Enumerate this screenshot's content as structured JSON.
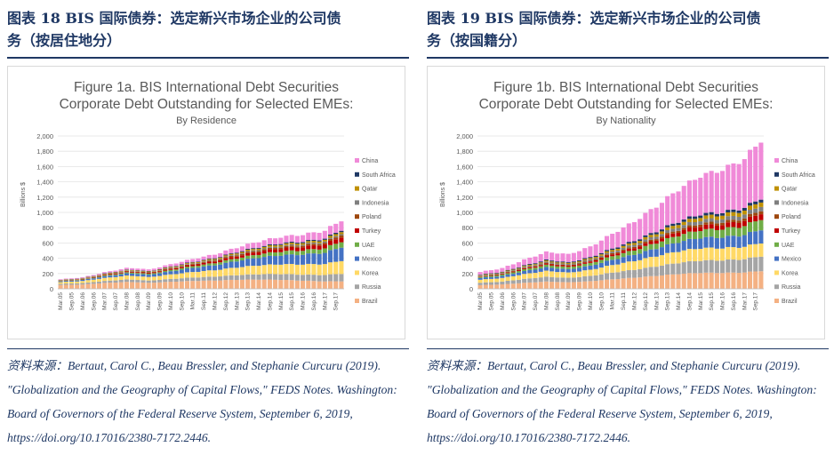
{
  "panels": [
    {
      "heading_line1": "图表 18   BIS 国际债券：选定新兴市场企业的公司债",
      "heading_line2": "务（按居住地分）",
      "source_note": "资料来源：Bertaut, Carol C., Beau Bressler, and Stephanie Curcuru (2019). \"Globalization and the Geography of Capital Flows,\" FEDS Notes. Washington: Board of Governors of the Federal Reserve System, September 6, 2019, https://doi.org/10.17016/2380-7172.2446."
    },
    {
      "heading_line1": "图表 19   BIS 国际债券：选定新兴市场企业的公司债",
      "heading_line2": "务（按国籍分）",
      "source_note": "资料来源：Bertaut, Carol C., Beau Bressler, and Stephanie Curcuru (2019). \"Globalization and the Geography of Capital Flows,\" FEDS Notes. Washington: Board of Governors of the Federal Reserve System, September 6, 2019, https://doi.org/10.17016/2380-7172.2446."
    }
  ],
  "series_colors": {
    "Brazil": "#f4b183",
    "Russia": "#a5a5a5",
    "Korea": "#ffd966",
    "Mexico": "#4472c4",
    "UAE": "#70ad47",
    "Turkey": "#c00000",
    "Poland": "#9e480e",
    "Indonesia": "#7f7f7f",
    "Qatar": "#bf9000",
    "South Africa": "#1f3864",
    "China": "#f08ad8"
  },
  "chart_data": [
    {
      "type": "bar",
      "stacked": true,
      "title": "Figure 1a.  BIS International Debt Securities",
      "title2": "Corporate Debt Outstanding for Selected EMEs:",
      "subtitle": "By Residence",
      "ylabel": "Billions $",
      "ylim": [
        0,
        2000
      ],
      "yticks": [
        "2,000",
        "1,800",
        "1,600",
        "1,400",
        "1,200",
        "1,000",
        "800",
        "600",
        "400",
        "200",
        "0"
      ],
      "ytick_values": [
        2000,
        1800,
        1600,
        1400,
        1200,
        1000,
        800,
        600,
        400,
        200,
        0
      ],
      "xtick_labels": [
        "Mar.05",
        "Sep.05",
        "Mar.06",
        "Sep.06",
        "Mar.07",
        "Sep.07",
        "Mar.08",
        "Sep.08",
        "Mar.09",
        "Sep.09",
        "Mar.10",
        "Sep.10",
        "Mar.11",
        "Sep.11",
        "Mar.12",
        "Sep.12",
        "Mar.13",
        "Sep.13",
        "Mar.14",
        "Sep.14",
        "Mar.15",
        "Sep.15",
        "Mar.16",
        "Sep.16",
        "Mar.17",
        "Sep.17"
      ],
      "legend": [
        "China",
        "South Africa",
        "Qatar",
        "Indonesia",
        "Poland",
        "Turkey",
        "UAE",
        "Mexico",
        "Korea",
        "Russia",
        "Brazil"
      ],
      "series_order": [
        "Brazil",
        "Russia",
        "Korea",
        "Mexico",
        "UAE",
        "Turkey",
        "Poland",
        "Indonesia",
        "Qatar",
        "South Africa",
        "China"
      ],
      "totals_anchor": [
        [
          0,
          125
        ],
        [
          4,
          150
        ],
        [
          8,
          215
        ],
        [
          12,
          270
        ],
        [
          14,
          270
        ],
        [
          16,
          250
        ],
        [
          20,
          320
        ],
        [
          24,
          390
        ],
        [
          28,
          450
        ],
        [
          32,
          540
        ],
        [
          36,
          620
        ],
        [
          40,
          680
        ],
        [
          44,
          710
        ],
        [
          48,
          760
        ],
        [
          51,
          900
        ]
      ],
      "share_start": {
        "Brazil": 0.4,
        "Russia": 0.12,
        "Korea": 0.18,
        "Mexico": 0.08,
        "UAE": 0.04,
        "Turkey": 0.03,
        "Poland": 0.02,
        "Indonesia": 0.02,
        "Qatar": 0.03,
        "South Africa": 0.02,
        "China": 0.06
      },
      "share_end": {
        "Brazil": 0.11,
        "Russia": 0.11,
        "Korea": 0.19,
        "Mexico": 0.2,
        "UAE": 0.08,
        "Turkey": 0.07,
        "Poland": 0.03,
        "Indonesia": 0.02,
        "Qatar": 0.03,
        "South Africa": 0.02,
        "China": 0.14
      }
    },
    {
      "type": "bar",
      "stacked": true,
      "title": "Figure 1b.  BIS International Debt Securities",
      "title2": "Corporate Debt Outstanding for Selected EMEs:",
      "subtitle": "By Nationality",
      "ylabel": "Billions $",
      "ylim": [
        0,
        2000
      ],
      "yticks": [
        "2,000",
        "1,800",
        "1,600",
        "1,400",
        "1,200",
        "1,000",
        "800",
        "600",
        "400",
        "200",
        "0"
      ],
      "ytick_values": [
        2000,
        1800,
        1600,
        1400,
        1200,
        1000,
        800,
        600,
        400,
        200,
        0
      ],
      "xtick_labels": [
        "Mar.05",
        "Sep.05",
        "Mar.06",
        "Sep.06",
        "Mar.07",
        "Sep.07",
        "Mar.08",
        "Sep.08",
        "Mar.09",
        "Sep.09",
        "Mar.10",
        "Sep.10",
        "Mar.11",
        "Sep.11",
        "Mar.12",
        "Sep.12",
        "Mar.13",
        "Sep.13",
        "Mar.14",
        "Sep.14",
        "Mar.15",
        "Sep.15",
        "Mar.16",
        "Sep.16",
        "Mar.17",
        "Sep.17"
      ],
      "legend": [
        "China",
        "South Africa",
        "Qatar",
        "Indonesia",
        "Poland",
        "Turkey",
        "UAE",
        "Mexico",
        "Korea",
        "Russia",
        "Brazil"
      ],
      "series_order": [
        "Brazil",
        "Russia",
        "Korea",
        "Mexico",
        "UAE",
        "Turkey",
        "Poland",
        "Indonesia",
        "Qatar",
        "South Africa",
        "China"
      ],
      "totals_anchor": [
        [
          0,
          220
        ],
        [
          4,
          270
        ],
        [
          8,
          380
        ],
        [
          12,
          480
        ],
        [
          14,
          470
        ],
        [
          16,
          450
        ],
        [
          20,
          550
        ],
        [
          24,
          720
        ],
        [
          28,
          880
        ],
        [
          32,
          1080
        ],
        [
          36,
          1300
        ],
        [
          40,
          1480
        ],
        [
          44,
          1560
        ],
        [
          48,
          1700
        ],
        [
          51,
          1950
        ]
      ],
      "share_start": {
        "Brazil": 0.22,
        "Russia": 0.14,
        "Korea": 0.18,
        "Mexico": 0.1,
        "UAE": 0.06,
        "Turkey": 0.03,
        "Poland": 0.02,
        "Indonesia": 0.03,
        "Qatar": 0.03,
        "South Africa": 0.03,
        "China": 0.16
      },
      "share_end": {
        "Brazil": 0.12,
        "Russia": 0.1,
        "Korea": 0.09,
        "Mexico": 0.09,
        "UAE": 0.07,
        "Turkey": 0.04,
        "Poland": 0.02,
        "Indonesia": 0.03,
        "Qatar": 0.03,
        "South Africa": 0.02,
        "China": 0.39
      }
    }
  ]
}
